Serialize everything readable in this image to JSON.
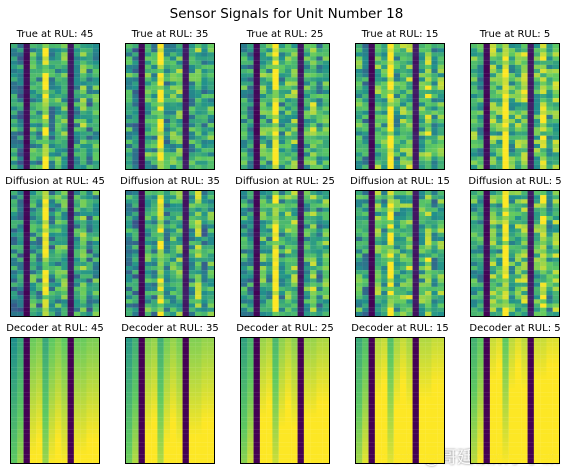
{
  "figure": {
    "title": "Sensor Signals for Unit Number 18",
    "watermark": "CSDN @哥廷根数学学派"
  },
  "colormap": {
    "name": "viridis",
    "stops": [
      "#440154",
      "#3b528b",
      "#21918c",
      "#5ec962",
      "#fde725"
    ]
  },
  "chart_data": {
    "type": "heatmap",
    "grid": {
      "rows": 3,
      "cols": 5
    },
    "axes_visible": false,
    "row_labels": [
      "True",
      "Diffusion",
      "Decoder"
    ],
    "rul_values": [
      45,
      35,
      25,
      15,
      5
    ],
    "panel_titles": [
      [
        "True at RUL: 45",
        "True at RUL: 35",
        "True at RUL: 25",
        "True at RUL: 15",
        "True at RUL: 5"
      ],
      [
        "Diffusion at RUL: 45",
        "Diffusion at RUL: 35",
        "Diffusion at RUL: 25",
        "Diffusion at RUL: 15",
        "Diffusion at RUL: 5"
      ],
      [
        "Decoder at RUL: 45",
        "Decoder at RUL: 35",
        "Decoder at RUL: 25",
        "Decoder at RUL: 15",
        "Decoder at RUL: 5"
      ]
    ],
    "cells_per_panel": {
      "sensors": 14,
      "time_steps": 30
    },
    "value_range": [
      0,
      1
    ],
    "sensor_profiles": {
      "true": [
        0.55,
        0.45,
        0.0,
        0.6,
        0.55,
        0.95,
        0.5,
        0.6,
        0.65,
        0.05,
        0.55,
        0.7,
        0.5,
        0.6
      ],
      "diffusion": [
        0.5,
        0.45,
        0.0,
        0.6,
        0.5,
        0.9,
        0.5,
        0.6,
        0.65,
        0.05,
        0.55,
        0.7,
        0.45,
        0.6
      ],
      "decoder": [
        0.65,
        0.75,
        0.0,
        0.92,
        0.95,
        0.75,
        0.9,
        0.95,
        0.9,
        0.0,
        0.92,
        0.92,
        0.95,
        0.95
      ]
    }
  }
}
